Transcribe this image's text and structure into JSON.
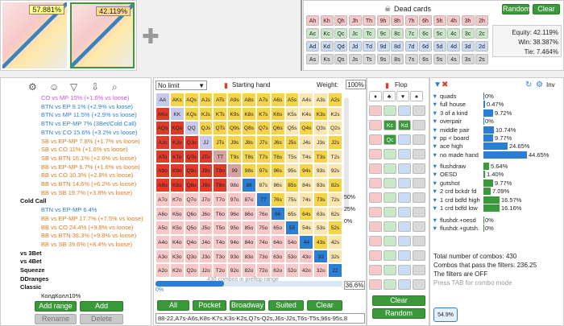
{
  "range_preview": {
    "left_pct": "57.881%",
    "right_pct": "42.119%"
  },
  "dead_cards": {
    "title": "Dead cards",
    "random": "Random",
    "clear": "Clear",
    "rows": [
      [
        "Ah",
        "Kh",
        "Qh",
        "Jh",
        "Th",
        "9h",
        "8h",
        "7h",
        "6h",
        "5h",
        "4h",
        "3h",
        "2h"
      ],
      [
        "Ac",
        "Kc",
        "Qc",
        "Jc",
        "Tc",
        "9c",
        "8c",
        "7c",
        "6c",
        "5c",
        "4c",
        "3c",
        "2c"
      ],
      [
        "Ad",
        "Kd",
        "Qd",
        "Jd",
        "Td",
        "9d",
        "8d",
        "7d",
        "6d",
        "5d",
        "4d",
        "3d",
        "2d"
      ],
      [
        "As",
        "Ks",
        "Qs",
        "Js",
        "Ts",
        "9s",
        "8s",
        "7s",
        "6s",
        "5s",
        "4s",
        "3s",
        "2s"
      ]
    ]
  },
  "equity": {
    "equity": "Equity: 42.119%",
    "win": "Win: 38.387%",
    "tie": "Tie: 7.464%"
  },
  "tree": {
    "items": [
      {
        "t": "CO vs MP 10% (+1.6% vs loose)",
        "c": "#c84fd8"
      },
      {
        "t": "BTN vs EP 9.1% (+2.9% vs loose)",
        "c": "#2a7fd4"
      },
      {
        "t": "BTN vs MP 11.5% (+2.9% vs loose)",
        "c": "#2a7fd4"
      },
      {
        "t": "BTN vs EP-MP 7% (3Bet/Cold Call)",
        "c": "#2a7fd4"
      },
      {
        "t": "BTN vs CO 15.6% (+3.2% vs loose)",
        "c": "#2a7fd4"
      },
      {
        "t": "SB vs EP-MP 7.8% (+1.7% vs loose)",
        "c": "#e07a20"
      },
      {
        "t": "SB vs CO 11% (+1.6% vs loose)",
        "c": "#e07a20"
      },
      {
        "t": "SB vs BTN 16.1% (+2.6% vs loose)",
        "c": "#e07a20"
      },
      {
        "t": "BB vs EP-MP 6.7% (+1.6% vs loose)",
        "c": "#e07a20"
      },
      {
        "t": "BB vs CO 10.3% (+2.8% vs loose)",
        "c": "#e07a20"
      },
      {
        "t": "BB vs BTN 14.6% (+6.2% vs loose)",
        "c": "#e07a20"
      },
      {
        "t": "BB vs SB 19.7% (+3.8% vs loose)",
        "c": "#e07a20"
      },
      {
        "t": "Cold Call",
        "c": "#111",
        "b": true
      },
      {
        "t": "BTN vs EP-MP 6.4%",
        "c": "#2a7fd4"
      },
      {
        "t": "BB vs EP-MP 17.7% (+7.5% vs loose)",
        "c": "#e07a20"
      },
      {
        "t": "BB vs CO 24.4% (+9.8% vs loose)",
        "c": "#e07a20"
      },
      {
        "t": "BB vs BTN 36.3% (+9.8% vs loose)",
        "c": "#e07a20"
      },
      {
        "t": "BB vs SB 39.6% (+8.4% vs loose)",
        "c": "#e07a20"
      },
      {
        "t": "vs 3Bet",
        "c": "#111",
        "b": true
      },
      {
        "t": "vs 4Bet",
        "c": "#111",
        "b": true
      },
      {
        "t": "Squeeze",
        "c": "#111",
        "b": true
      },
      {
        "t": "DDranges",
        "c": "#111",
        "b": true
      },
      {
        "t": "Classic",
        "c": "#111",
        "b": true
      },
      {
        "t": "КолдКолл10%",
        "c": "#111"
      }
    ],
    "add_range": "Add range",
    "add_category": "Add category",
    "rename": "Rename",
    "delete": "Delete"
  },
  "matrix": {
    "limit": "No limit",
    "starting_hand": "Starting hand",
    "weight_label": "Weight:",
    "weight": "100%",
    "combos": "430 combos in preflop range",
    "pct": "36.6%",
    "slider_pct": "0%",
    "side": [
      "50%",
      "25%",
      "0%"
    ],
    "buttons": [
      "All",
      "Pocket",
      "Broadway",
      "Suited",
      "Clear"
    ],
    "range_text": "88-22,A7s-A6s,K8s-K7s,K3s-K2s,Q7s-Q2s,J6s-J2s,T6s-T5s,96s-95s,8"
  },
  "ranks": [
    "A",
    "K",
    "Q",
    "J",
    "T",
    "9",
    "8",
    "7",
    "6",
    "5",
    "4",
    "3",
    "2"
  ],
  "flop": {
    "title": "Flop",
    "clear": "Clear",
    "random": "Random",
    "selected": [
      "Kc",
      "Kd",
      "Qc"
    ],
    "badge": "54.9%"
  },
  "stats": {
    "inv": "Inv",
    "made": [
      {
        "n": "quads",
        "v": "0%",
        "w": 0
      },
      {
        "n": "full house",
        "v": "0.47%",
        "w": 2
      },
      {
        "n": "3 of a kind",
        "v": "9.72%",
        "w": 12
      },
      {
        "n": "overpair",
        "v": "0%",
        "w": 0
      },
      {
        "n": "middle pair",
        "v": "10.74%",
        "w": 13
      },
      {
        "n": "pp < board",
        "v": "9.77%",
        "w": 12
      },
      {
        "n": "ace high",
        "v": "24.65%",
        "w": 30
      },
      {
        "n": "no made hand",
        "v": "44.65%",
        "w": 54
      }
    ],
    "draws": [
      {
        "n": "flushdraw",
        "v": "5.64%",
        "w": 7
      },
      {
        "n": "OESD",
        "v": "1.40%",
        "w": 2
      },
      {
        "n": "gutshot",
        "v": "9.77%",
        "w": 12
      },
      {
        "n": "2 crd bckdr fd",
        "v": "7.09%",
        "w": 9
      },
      {
        "n": "1 crd bdfd high",
        "v": "16.57%",
        "w": 20
      },
      {
        "n": "1 crd bdfd low",
        "v": "16.16%",
        "w": 20
      }
    ],
    "combo": [
      {
        "n": "flushdr.+oesd",
        "v": "0%"
      },
      {
        "n": "flushdr.+gutsh.",
        "v": "0%"
      }
    ],
    "total": "Total number of combos: 430",
    "pass": "Combos that pass the filters: 236.25",
    "filters": "The filters are OFF",
    "tab": "Press TAB for combo mode"
  },
  "colors": {
    "red": "#e03a2a",
    "yellow": "#f5d44a",
    "pink": "#f8c8c8",
    "blue": "#2a7fd4",
    "green": "#3a9a3a"
  }
}
